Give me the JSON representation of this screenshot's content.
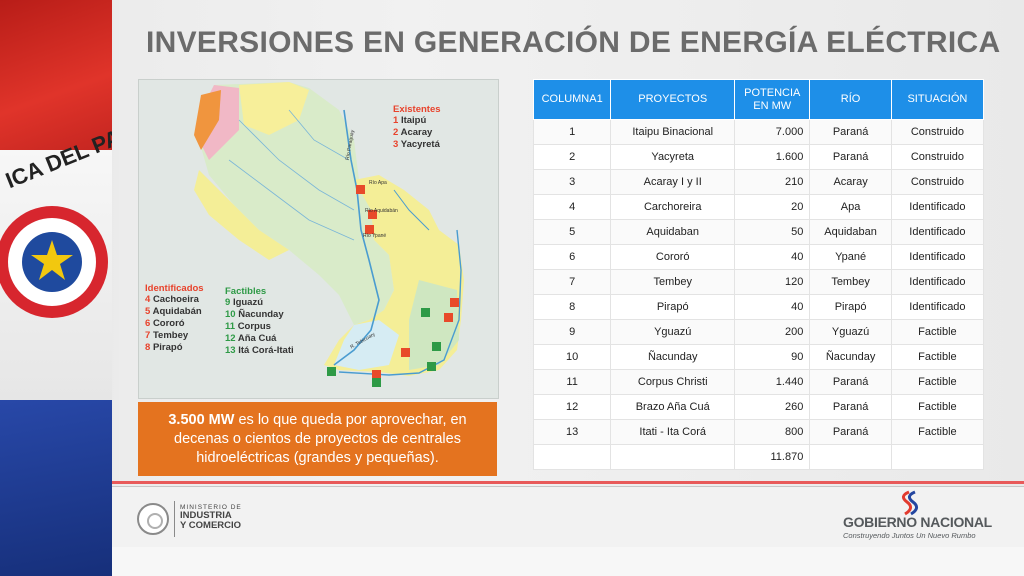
{
  "slide": {
    "title": "INVERSIONES EN GENERACIÓN DE ENERGÍA ELÉCTRICA"
  },
  "flag": {
    "colors": {
      "red": "#d5281f",
      "white": "#f4f4f4",
      "blue": "#1f3a93",
      "star": "#f2c80f"
    },
    "seal_text": "ICA DEL PA"
  },
  "map": {
    "existentes": {
      "title": "Existentes",
      "items": [
        {
          "num": "1",
          "name": "Itaipú"
        },
        {
          "num": "2",
          "name": "Acaray"
        },
        {
          "num": "3",
          "name": "Yacyretá"
        }
      ]
    },
    "identificados": {
      "title": "Identificados",
      "items": [
        {
          "num": "4",
          "name": "Cachoeira"
        },
        {
          "num": "5",
          "name": "Aquidabán"
        },
        {
          "num": "6",
          "name": "Cororó"
        },
        {
          "num": "7",
          "name": "Tembey"
        },
        {
          "num": "8",
          "name": "Pirapó"
        }
      ]
    },
    "factibles": {
      "title": "Factibles",
      "items": [
        {
          "num": "9",
          "name": "Iguazú"
        },
        {
          "num": "10",
          "name": "Ñacunday"
        },
        {
          "num": "11",
          "name": "Corpus"
        },
        {
          "num": "12",
          "name": "Aña Cuá"
        },
        {
          "num": "13",
          "name": "Itá Corá-Itati"
        }
      ]
    },
    "rivers": {
      "paraguay": "Río Paraguay",
      "apa": "Río Apa",
      "aquidaban": "Río Aquidabán",
      "ypane": "Río Ypané",
      "tebicuary": "R. Tebicuary"
    }
  },
  "callout": {
    "highlight": "3.500 MW",
    "text": " es lo que queda por aprovechar, en decenas o cientos de proyectos de centrales hidroeléctricas (grandes y pequeñas)."
  },
  "table": {
    "headers": [
      "COLUMNA1",
      "PROYECTOS",
      "POTENCIA EN MW",
      "RÍO",
      "SITUACIÓN"
    ],
    "rows": [
      [
        "1",
        "Itaipu Binacional",
        "7.000",
        "Paraná",
        "Construido"
      ],
      [
        "2",
        "Yacyreta",
        "1.600",
        "Paraná",
        "Construido"
      ],
      [
        "3",
        "Acaray I y II",
        "210",
        "Acaray",
        "Construido"
      ],
      [
        "4",
        "Carchoreira",
        "20",
        "Apa",
        "Identificado"
      ],
      [
        "5",
        "Aquidaban",
        "50",
        "Aquidaban",
        "Identificado"
      ],
      [
        "6",
        "Cororó",
        "40",
        "Ypané",
        "Identificado"
      ],
      [
        "7",
        "Tembey",
        "120",
        "Tembey",
        "Identificado"
      ],
      [
        "8",
        "Pirapó",
        "40",
        "Pirapó",
        "Identificado"
      ],
      [
        "9",
        "Yguazú",
        "200",
        "Yguazú",
        "Factible"
      ],
      [
        "10",
        "Ñacunday",
        "90",
        "Ñacunday",
        "Factible"
      ],
      [
        "11",
        "Corpus Christi",
        "1.440",
        "Paraná",
        "Factible"
      ],
      [
        "12",
        "Brazo Aña Cuá",
        "260",
        "Paraná",
        "Factible"
      ],
      [
        "13",
        "Itati - Ita Corá",
        "800",
        "Paraná",
        "Factible"
      ]
    ],
    "total": "11.870"
  },
  "footer": {
    "ministry_small": "MINISTERIO DE",
    "ministry_line1": "INDUSTRIA",
    "ministry_line2": "Y COMERCIO",
    "gov_name": "GOBIERNO NACIONAL",
    "gov_slogan": "Construyendo Juntos Un Nuevo Rumbo"
  }
}
